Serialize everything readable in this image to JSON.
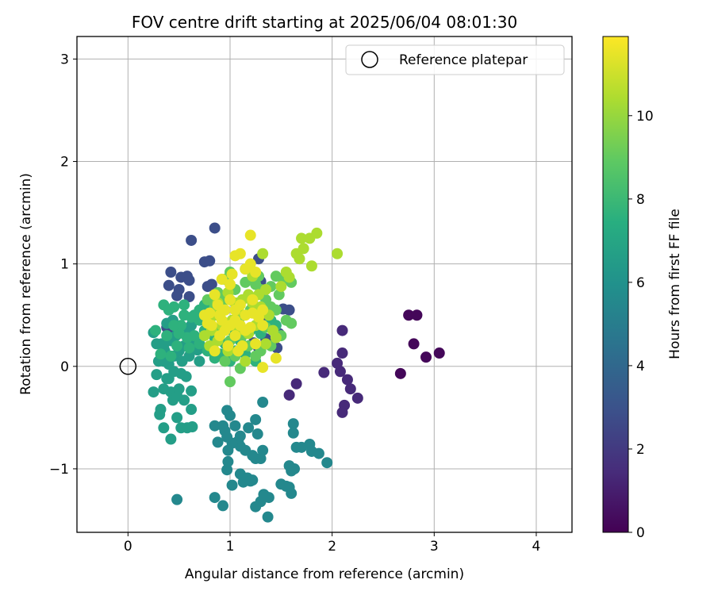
{
  "chart_data": {
    "type": "scatter",
    "title": "FOV centre drift starting at 2025/06/04 08:01:30",
    "xlabel": "Angular distance from reference (arcmin)",
    "ylabel": "Rotation from reference (arcmin)",
    "xlim": [
      -0.5,
      4.35
    ],
    "ylim": [
      -1.62,
      3.22
    ],
    "xticks": [
      0,
      1,
      2,
      3,
      4
    ],
    "yticks": [
      -1,
      0,
      1,
      2,
      3
    ],
    "ytick_labels": [
      "−1",
      "0",
      "1",
      "2",
      "3"
    ],
    "grid": true,
    "legend": {
      "position": "top-right",
      "entries": [
        "Reference platepar"
      ]
    },
    "reference_point": {
      "x": 0,
      "y": 0
    },
    "colorbar": {
      "label": "Hours from first FF file",
      "range": [
        0,
        11.9
      ],
      "ticks": [
        0,
        2,
        4,
        6,
        8,
        10
      ],
      "colormap": "viridis"
    },
    "series": [
      {
        "c": 0.2,
        "points": [
          [
            2.75,
            0.5
          ],
          [
            2.83,
            0.5
          ],
          [
            2.8,
            0.22
          ],
          [
            2.92,
            0.09
          ],
          [
            3.05,
            0.13
          ],
          [
            2.67,
            -0.07
          ]
        ]
      },
      {
        "c": 1.4,
        "points": [
          [
            2.1,
            0.35
          ],
          [
            2.1,
            0.13
          ],
          [
            2.05,
            0.03
          ],
          [
            2.08,
            -0.05
          ],
          [
            1.92,
            -0.06
          ],
          [
            2.15,
            -0.13
          ],
          [
            2.18,
            -0.22
          ],
          [
            2.25,
            -0.31
          ],
          [
            2.12,
            -0.38
          ],
          [
            2.1,
            -0.45
          ],
          [
            1.65,
            -0.17
          ],
          [
            1.58,
            -0.28
          ]
        ]
      },
      {
        "c": 2.8,
        "points": [
          [
            0.62,
            1.23
          ],
          [
            0.85,
            1.35
          ],
          [
            0.75,
            1.02
          ],
          [
            0.8,
            1.03
          ],
          [
            0.42,
            0.92
          ],
          [
            0.52,
            0.87
          ],
          [
            0.58,
            0.88
          ],
          [
            0.6,
            0.84
          ],
          [
            0.4,
            0.79
          ],
          [
            0.5,
            0.75
          ],
          [
            0.48,
            0.69
          ],
          [
            0.6,
            0.68
          ],
          [
            0.78,
            0.78
          ],
          [
            0.82,
            0.8
          ],
          [
            0.38,
            0.38
          ],
          [
            0.45,
            0.35
          ],
          [
            1.28,
            1.05
          ],
          [
            1.3,
            0.83
          ],
          [
            1.35,
            0.48
          ],
          [
            1.52,
            0.56
          ],
          [
            1.58,
            0.55
          ],
          [
            1.48,
            0.32
          ],
          [
            1.35,
            0.27
          ],
          [
            1.23,
            0.23
          ],
          [
            1.28,
            0.18
          ],
          [
            1.46,
            0.18
          ],
          [
            1.32,
            0.43
          ]
        ]
      },
      {
        "c": 5.5,
        "points": [
          [
            0.48,
            -1.3
          ],
          [
            0.85,
            -1.28
          ],
          [
            0.93,
            -1.36
          ],
          [
            1.02,
            -1.16
          ],
          [
            1.1,
            -1.05
          ],
          [
            1.13,
            -1.13
          ],
          [
            1.17,
            -1.09
          ],
          [
            1.2,
            -1.12
          ],
          [
            1.22,
            -1.11
          ],
          [
            1.25,
            -1.37
          ],
          [
            1.3,
            -1.32
          ],
          [
            1.33,
            -1.25
          ],
          [
            1.38,
            -1.28
          ],
          [
            1.37,
            -1.47
          ],
          [
            1.5,
            -1.15
          ],
          [
            1.55,
            -1.17
          ],
          [
            1.58,
            -1.18
          ],
          [
            1.6,
            -1.24
          ],
          [
            1.6,
            -1.02
          ],
          [
            1.58,
            -0.97
          ],
          [
            1.63,
            -1.0
          ],
          [
            1.65,
            -0.79
          ],
          [
            1.7,
            -0.79
          ],
          [
            1.78,
            -0.76
          ],
          [
            1.8,
            -0.83
          ],
          [
            1.87,
            -0.85
          ],
          [
            1.95,
            -0.94
          ],
          [
            1.62,
            -0.56
          ],
          [
            1.62,
            -0.65
          ],
          [
            1.32,
            -0.82
          ],
          [
            1.3,
            -0.9
          ],
          [
            1.25,
            -0.9
          ],
          [
            1.22,
            -0.87
          ],
          [
            1.15,
            -0.82
          ],
          [
            1.1,
            -0.78
          ],
          [
            1.08,
            -0.73
          ],
          [
            1.02,
            -0.75
          ],
          [
            0.98,
            -0.82
          ],
          [
            0.98,
            -0.93
          ],
          [
            0.97,
            -1.01
          ],
          [
            0.88,
            -0.74
          ],
          [
            0.95,
            -0.63
          ],
          [
            0.97,
            -0.43
          ],
          [
            1.0,
            -0.48
          ],
          [
            0.93,
            -0.58
          ],
          [
            0.97,
            -0.69
          ],
          [
            1.1,
            -0.68
          ],
          [
            1.18,
            -0.6
          ],
          [
            1.27,
            -0.66
          ],
          [
            1.25,
            -0.52
          ],
          [
            1.32,
            -0.35
          ],
          [
            0.85,
            -0.58
          ],
          [
            1.05,
            -0.58
          ]
        ]
      },
      {
        "c": 6.6,
        "points": [
          [
            0.48,
            -0.25
          ],
          [
            0.62,
            -0.24
          ],
          [
            0.55,
            -0.33
          ],
          [
            0.48,
            -0.5
          ],
          [
            0.52,
            -0.6
          ],
          [
            0.58,
            -0.6
          ],
          [
            0.63,
            -0.59
          ],
          [
            0.62,
            -0.42
          ],
          [
            0.42,
            -0.71
          ],
          [
            0.35,
            -0.6
          ],
          [
            0.32,
            -0.42
          ],
          [
            0.31,
            -0.47
          ],
          [
            0.25,
            -0.25
          ],
          [
            0.35,
            -0.22
          ],
          [
            0.28,
            -0.08
          ],
          [
            0.38,
            -0.12
          ],
          [
            0.42,
            -0.25
          ],
          [
            0.44,
            -0.33
          ],
          [
            0.48,
            -0.29
          ],
          [
            0.5,
            -0.22
          ],
          [
            0.57,
            -0.1
          ],
          [
            0.52,
            -0.07
          ],
          [
            0.4,
            0.02
          ],
          [
            0.3,
            0.05
          ],
          [
            0.28,
            0.22
          ],
          [
            0.35,
            0.18
          ],
          [
            0.25,
            0.33
          ],
          [
            0.45,
            0.1
          ],
          [
            0.55,
            0.2
          ],
          [
            0.5,
            0.15
          ],
          [
            0.6,
            0.1
          ],
          [
            0.42,
            0.25
          ],
          [
            0.36,
            0.15
          ],
          [
            0.47,
            0.3
          ],
          [
            0.58,
            0.33
          ],
          [
            0.38,
            0.42
          ],
          [
            0.6,
            0.35
          ],
          [
            0.65,
            0.25
          ],
          [
            0.7,
            0.05
          ],
          [
            0.68,
            0.16
          ],
          [
            0.62,
            0.4
          ],
          [
            0.72,
            0.18
          ],
          [
            0.4,
            -0.12
          ],
          [
            0.45,
            -0.05
          ],
          [
            0.53,
            0.05
          ],
          [
            0.35,
            0.05
          ],
          [
            0.33,
            0.22
          ],
          [
            0.44,
            0.45
          ]
        ]
      },
      {
        "c": 7.6,
        "points": [
          [
            0.35,
            0.6
          ],
          [
            0.45,
            0.58
          ],
          [
            0.55,
            0.5
          ],
          [
            0.62,
            0.48
          ],
          [
            0.7,
            0.45
          ],
          [
            0.75,
            0.35
          ],
          [
            0.8,
            0.4
          ],
          [
            0.65,
            0.3
          ],
          [
            0.58,
            0.28
          ],
          [
            0.52,
            0.4
          ],
          [
            0.48,
            0.2
          ],
          [
            0.42,
            0.1
          ],
          [
            0.38,
            0.3
          ],
          [
            0.7,
            0.55
          ],
          [
            0.85,
            0.28
          ],
          [
            0.9,
            0.12
          ],
          [
            0.95,
            0.22
          ],
          [
            1.05,
            0.15
          ],
          [
            1.15,
            0.12
          ],
          [
            1.25,
            0.05
          ],
          [
            1.1,
            0.25
          ],
          [
            1.02,
            0.35
          ],
          [
            0.95,
            0.4
          ],
          [
            1.2,
            0.35
          ],
          [
            1.3,
            0.32
          ],
          [
            1.4,
            0.45
          ],
          [
            1.45,
            0.4
          ],
          [
            1.0,
            0.05
          ],
          [
            0.85,
            0.08
          ],
          [
            0.78,
            0.15
          ],
          [
            0.7,
            0.22
          ],
          [
            0.6,
            0.18
          ],
          [
            0.5,
            0.32
          ],
          [
            0.45,
            0.4
          ],
          [
            0.32,
            0.12
          ],
          [
            0.27,
            0.35
          ],
          [
            0.4,
            0.55
          ],
          [
            0.55,
            0.6
          ],
          [
            0.65,
            0.5
          ],
          [
            0.75,
            0.6
          ]
        ]
      },
      {
        "c": 9.0,
        "points": [
          [
            1.0,
            -0.15
          ],
          [
            1.12,
            0.3
          ],
          [
            1.25,
            0.1
          ],
          [
            1.3,
            0.15
          ],
          [
            1.4,
            0.2
          ],
          [
            1.5,
            0.3
          ],
          [
            1.55,
            0.45
          ],
          [
            1.6,
            0.42
          ],
          [
            1.45,
            0.55
          ],
          [
            1.35,
            0.65
          ],
          [
            1.3,
            0.75
          ],
          [
            1.25,
            0.8
          ],
          [
            1.15,
            0.82
          ],
          [
            1.05,
            0.75
          ],
          [
            0.95,
            0.65
          ],
          [
            0.85,
            0.58
          ],
          [
            0.8,
            0.45
          ],
          [
            0.9,
            0.35
          ],
          [
            1.0,
            0.25
          ],
          [
            1.1,
            0.48
          ],
          [
            1.2,
            0.55
          ],
          [
            1.4,
            0.78
          ],
          [
            1.45,
            0.88
          ],
          [
            1.52,
            0.85
          ],
          [
            1.6,
            0.82
          ],
          [
            1.48,
            0.7
          ],
          [
            1.4,
            0.58
          ],
          [
            0.95,
            0.05
          ],
          [
            1.05,
            0.1
          ],
          [
            1.18,
            0.2
          ],
          [
            1.35,
            0.38
          ],
          [
            0.78,
            0.65
          ],
          [
            0.88,
            0.72
          ],
          [
            0.95,
            0.85
          ],
          [
            1.0,
            0.92
          ],
          [
            1.15,
            0.95
          ],
          [
            1.28,
            0.88
          ],
          [
            1.1,
            -0.02
          ]
        ]
      },
      {
        "c": 10.4,
        "points": [
          [
            1.65,
            1.1
          ],
          [
            1.72,
            1.15
          ],
          [
            1.7,
            1.25
          ],
          [
            1.78,
            1.25
          ],
          [
            1.85,
            1.3
          ],
          [
            2.05,
            1.1
          ],
          [
            1.8,
            0.98
          ],
          [
            1.68,
            1.05
          ],
          [
            1.55,
            0.92
          ],
          [
            1.58,
            0.87
          ],
          [
            1.5,
            0.78
          ],
          [
            1.32,
            1.1
          ],
          [
            1.22,
            0.88
          ],
          [
            1.18,
            0.7
          ],
          [
            1.08,
            0.55
          ],
          [
            1.02,
            0.45
          ],
          [
            0.92,
            0.4
          ],
          [
            0.85,
            0.5
          ],
          [
            0.82,
            0.35
          ],
          [
            0.75,
            0.3
          ],
          [
            0.8,
            0.2
          ],
          [
            0.88,
            0.25
          ],
          [
            0.98,
            0.15
          ],
          [
            1.15,
            0.05
          ],
          [
            1.3,
            0.58
          ],
          [
            1.38,
            0.5
          ],
          [
            1.42,
            0.35
          ],
          [
            1.45,
            0.28
          ],
          [
            1.35,
            0.22
          ],
          [
            1.25,
            0.4
          ],
          [
            1.18,
            0.32
          ],
          [
            1.08,
            0.35
          ],
          [
            1.05,
            0.62
          ],
          [
            0.98,
            0.72
          ],
          [
            1.12,
            0.65
          ],
          [
            1.22,
            0.62
          ],
          [
            1.28,
            0.7
          ],
          [
            1.35,
            0.75
          ],
          [
            0.95,
            0.55
          ],
          [
            0.88,
            0.62
          ]
        ]
      },
      {
        "c": 11.5,
        "points": [
          [
            1.2,
            1.28
          ],
          [
            1.1,
            1.1
          ],
          [
            1.05,
            1.08
          ],
          [
            1.2,
            1.0
          ],
          [
            1.15,
            0.95
          ],
          [
            1.25,
            0.92
          ],
          [
            1.02,
            0.9
          ],
          [
            1.0,
            0.8
          ],
          [
            0.92,
            0.85
          ],
          [
            0.85,
            0.7
          ],
          [
            0.88,
            0.6
          ],
          [
            0.95,
            0.55
          ],
          [
            1.05,
            0.45
          ],
          [
            1.1,
            0.4
          ],
          [
            1.15,
            0.35
          ],
          [
            1.2,
            0.38
          ],
          [
            1.28,
            0.48
          ],
          [
            1.32,
            0.4
          ],
          [
            1.1,
            0.6
          ],
          [
            1.0,
            0.65
          ],
          [
            0.9,
            0.5
          ],
          [
            0.8,
            0.52
          ],
          [
            0.82,
            0.4
          ],
          [
            0.9,
            0.3
          ],
          [
            0.95,
            0.35
          ],
          [
            1.05,
            0.3
          ],
          [
            1.15,
            0.5
          ],
          [
            1.22,
            0.65
          ],
          [
            1.32,
            0.55
          ],
          [
            1.45,
            0.08
          ],
          [
            1.32,
            -0.01
          ],
          [
            1.08,
            0.15
          ],
          [
            0.98,
            0.2
          ],
          [
            0.85,
            0.15
          ],
          [
            0.75,
            0.5
          ],
          [
            0.78,
            0.42
          ],
          [
            1.0,
            0.4
          ],
          [
            1.12,
            0.2
          ],
          [
            1.25,
            0.22
          ],
          [
            1.22,
            0.52
          ],
          [
            1.05,
            0.55
          ],
          [
            0.92,
            0.45
          ]
        ]
      }
    ]
  }
}
